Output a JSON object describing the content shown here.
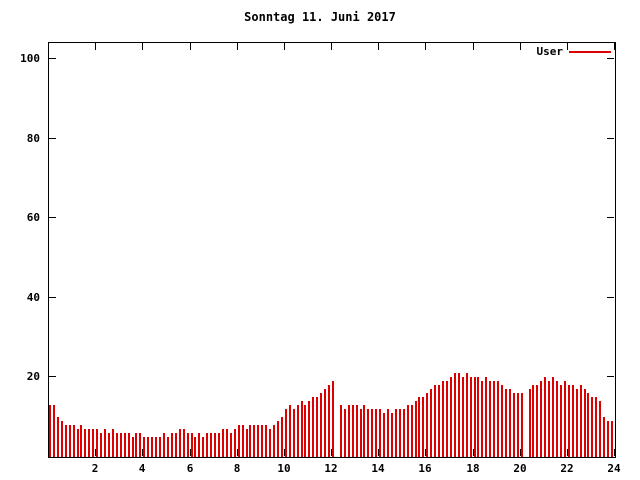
{
  "chart_data": {
    "type": "bar",
    "title": "Sonntag 11. Juni 2017",
    "xlabel": "",
    "ylabel": "",
    "xlim": [
      0,
      24
    ],
    "ylim": [
      0,
      104
    ],
    "x_ticks": [
      2,
      4,
      6,
      8,
      10,
      12,
      14,
      16,
      18,
      20,
      22,
      24
    ],
    "y_ticks": [
      20,
      40,
      60,
      80,
      100
    ],
    "grid": false,
    "legend_position": "top-right",
    "x_step_minutes": 10,
    "series": [
      {
        "name": "User",
        "color": "#dd0000",
        "values": [
          13,
          13,
          10,
          9,
          8,
          8,
          8,
          7,
          8,
          7,
          7,
          7,
          7,
          6,
          7,
          6,
          7,
          6,
          6,
          6,
          6,
          5,
          6,
          6,
          5,
          5,
          5,
          5,
          5,
          6,
          5,
          6,
          6,
          7,
          7,
          6,
          6,
          5,
          6,
          5,
          6,
          6,
          6,
          6,
          7,
          7,
          6,
          7,
          8,
          8,
          7,
          8,
          8,
          8,
          8,
          8,
          7,
          8,
          9,
          10,
          12,
          13,
          12,
          13,
          14,
          13,
          14,
          15,
          15,
          16,
          17,
          18,
          19,
          0,
          13,
          12,
          13,
          13,
          13,
          12,
          13,
          12,
          12,
          12,
          12,
          11,
          12,
          11,
          12,
          12,
          12,
          13,
          13,
          14,
          15,
          15,
          16,
          17,
          18,
          18,
          19,
          19,
          20,
          21,
          21,
          20,
          21,
          20,
          20,
          20,
          19,
          20,
          19,
          19,
          19,
          18,
          17,
          17,
          16,
          16,
          16,
          0,
          17,
          18,
          18,
          19,
          20,
          19,
          20,
          19,
          18,
          19,
          18,
          18,
          17,
          18,
          17,
          16,
          15,
          15,
          14,
          10,
          9,
          9
        ]
      }
    ]
  }
}
